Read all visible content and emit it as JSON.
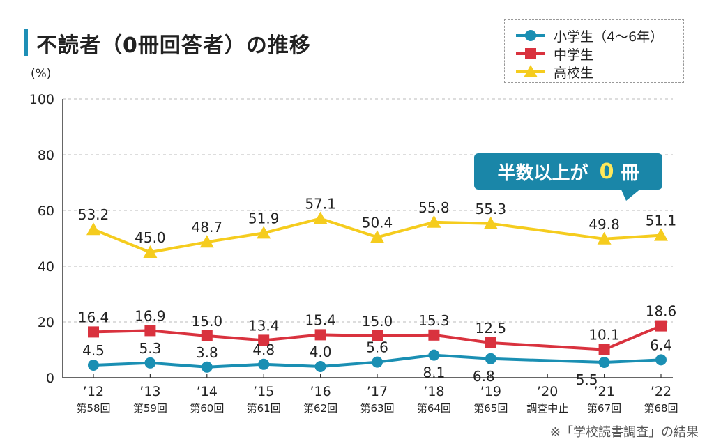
{
  "title": "不読者（0冊回答者）の推移",
  "unit": "(%)",
  "source": "※「学校読書調査」の結果",
  "callout": {
    "prefix": "半数以上が",
    "zero": "0",
    "suffix": "冊"
  },
  "colors": {
    "elementary": "#1a8fb3",
    "middle": "#d9323e",
    "high": "#f5cc1e",
    "accent": "#1e8fb6"
  },
  "chart_data": {
    "type": "line",
    "title": "不読者（0冊回答者）の推移",
    "ylabel": "(%)",
    "ylim": [
      0,
      100
    ],
    "yticks": [
      0,
      20,
      40,
      60,
      80,
      100
    ],
    "grid": true,
    "legend_position": "top-right",
    "categories": [
      {
        "year": "’12",
        "round": "第58回"
      },
      {
        "year": "’13",
        "round": "第59回"
      },
      {
        "year": "’14",
        "round": "第60回"
      },
      {
        "year": "’15",
        "round": "第61回"
      },
      {
        "year": "’16",
        "round": "第62回"
      },
      {
        "year": "’17",
        "round": "第63回"
      },
      {
        "year": "’18",
        "round": "第64回"
      },
      {
        "year": "’19",
        "round": "第65回"
      },
      {
        "year": "’20",
        "round": "調査中止"
      },
      {
        "year": "’21",
        "round": "第67回"
      },
      {
        "year": "’22",
        "round": "第68回"
      }
    ],
    "series": [
      {
        "key": "high",
        "name": "高校生",
        "marker": "triangle",
        "values": [
          53.2,
          45.0,
          48.7,
          51.9,
          57.1,
          50.4,
          55.8,
          55.3,
          null,
          49.8,
          51.1
        ],
        "labels": [
          "53.2",
          "45.0",
          "48.7",
          "51.9",
          "57.1",
          "50.4",
          "55.8",
          "55.3",
          null,
          "49.8",
          "51.1"
        ]
      },
      {
        "key": "middle",
        "name": "中学生",
        "marker": "square",
        "values": [
          16.4,
          16.9,
          15.0,
          13.4,
          15.4,
          15.0,
          15.3,
          12.5,
          null,
          10.1,
          18.6
        ],
        "labels": [
          "16.4",
          "16.9",
          "15.0",
          "13.4",
          "15.4",
          "15.0",
          "15.3",
          "12.5",
          null,
          "10.1",
          "18.6"
        ]
      },
      {
        "key": "elementary",
        "name": "小学生（4〜6年）",
        "marker": "circle",
        "values": [
          4.5,
          5.3,
          3.8,
          4.8,
          4.0,
          5.6,
          8.1,
          6.8,
          null,
          5.5,
          6.4
        ],
        "labels": [
          "4.5",
          "5.3",
          "3.8",
          "4.8",
          "4.0",
          "5.6",
          "8.1",
          "6.8",
          null,
          "5.5",
          "6.4"
        ]
      }
    ]
  }
}
